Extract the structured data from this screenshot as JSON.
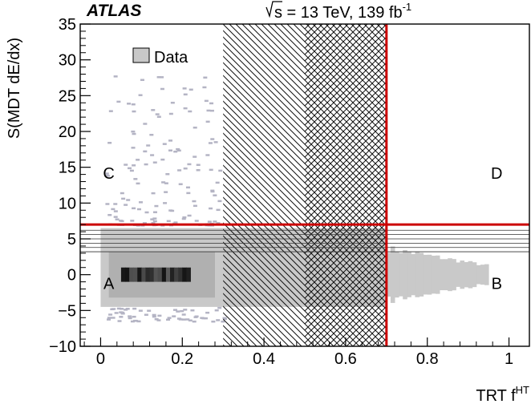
{
  "chart_data": {
    "type": "heatmap",
    "experiment": "ATLAS",
    "energy_label": {
      "sqrt_s": "s",
      "rest": " = 13 TeV, 139 fb",
      "sup": "-1"
    },
    "xlabel": {
      "main": "TRT f",
      "sup": "HT"
    },
    "ylabel": "S(MDT dE/dx)",
    "xlim": [
      -0.05,
      1.05
    ],
    "ylim": [
      -10,
      35
    ],
    "xticks": [
      0,
      0.2,
      0.4,
      0.6,
      0.8,
      1
    ],
    "xtick_labels": [
      "0",
      "0.2",
      "0.4",
      "0.6",
      "0.8",
      "1"
    ],
    "yticks": [
      -10,
      -5,
      0,
      5,
      10,
      15,
      20,
      25,
      30,
      35
    ],
    "ytick_labels": [
      "−10",
      "−5",
      "0",
      "5",
      "10",
      "15",
      "20",
      "25",
      "30",
      "35"
    ],
    "legend": {
      "label": "Data",
      "position": "top-left",
      "color": "#c8c8c8"
    },
    "regions": [
      {
        "label": "A",
        "x": 0.02,
        "y": -1.2
      },
      {
        "label": "B",
        "x": 0.97,
        "y": -1.2
      },
      {
        "label": "C",
        "x": 0.02,
        "y": 14.2
      },
      {
        "label": "D",
        "x": 0.97,
        "y": 14.2
      }
    ],
    "cut_lines": {
      "x": 0.7,
      "y": 7,
      "color": "#cc0000"
    },
    "excluded_bands": [
      {
        "x_range": [
          0.3,
          0.5
        ],
        "pattern": "single-hatch"
      },
      {
        "x_range": [
          0.5,
          0.7
        ],
        "pattern": "cross-hatch"
      }
    ],
    "horizontal_stripe_lines": [
      3.2,
      3.8,
      4.4,
      5.0,
      5.6,
      6.2
    ],
    "core_distribution": {
      "x_range": [
        0,
        0.7
      ],
      "y_range": [
        -4.5,
        6.5
      ]
    },
    "right_tail": {
      "x_range": [
        0.7,
        0.95
      ],
      "y_range": [
        -3.5,
        3.5
      ]
    },
    "dense_core": {
      "x_range": [
        0.05,
        0.22
      ],
      "y_range": [
        -1,
        1
      ]
    }
  }
}
